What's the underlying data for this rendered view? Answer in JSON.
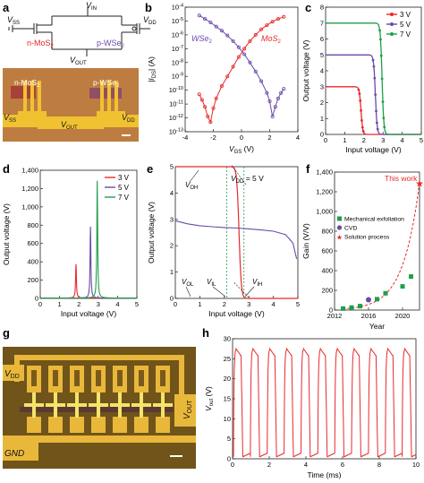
{
  "panels": {
    "a": "a",
    "b": "b",
    "c": "c",
    "d": "d",
    "e": "e",
    "f": "f",
    "g": "g",
    "h": "h"
  },
  "colors": {
    "red": "#e8292a",
    "purple": "#6a4aa8",
    "green": "#1f9e4a",
    "gold": "#e9b83b",
    "chip": "#7a5a1c"
  },
  "a": {
    "vin": "V",
    "vin_sub": "IN",
    "vss": "V",
    "vss_sub": "SS",
    "vdd": "V",
    "vdd_sub": "DD",
    "vout": "V",
    "vout_sub": "OUT",
    "nmos": "n-MoS",
    "nmos_sub": "2",
    "pwse": "p-WSe",
    "pwse_sub": "2",
    "photo_nmos": "n-MoS",
    "photo_nmos_sub": "2",
    "photo_pwse": "p-WSe",
    "photo_pwse_sub": "2",
    "photo_vss": "V",
    "photo_vss_sub": "SS",
    "photo_vdd": "V",
    "photo_vdd_sub": "DD",
    "photo_vout": "V",
    "photo_vout_sub": "OUT"
  },
  "g": {
    "vdd": "V",
    "vdd_sub": "DD",
    "vout": "V",
    "vout_sub": "OUT",
    "gnd": "GND"
  },
  "chart_data": [
    {
      "panel": "b",
      "type": "line",
      "title": "",
      "xlabel": "V",
      "xlabel_sub": "GS",
      "xlabel_unit": " (V)",
      "ylabel": "|I",
      "ylabel_sub": "DS",
      "ylabel_unit": "| (A)",
      "xlim": [
        -4,
        4
      ],
      "ylim_log10": [
        -13,
        -4
      ],
      "log_y": true,
      "xticks": [
        "-4",
        "-2",
        "0",
        "2",
        "4"
      ],
      "yticks": [
        "10",
        "10",
        "10",
        "10",
        "10",
        "10",
        "10",
        "10",
        "10",
        "10"
      ],
      "ytick_exps": [
        "-4",
        "-5",
        "-6",
        "-7",
        "-8",
        "-9",
        "-10",
        "-11",
        "-12",
        "-13"
      ],
      "labels": {
        "wse": "WSe",
        "wse_sub": "2",
        "mos": "MoS",
        "mos_sub": "2"
      },
      "series": [
        {
          "name": "WSe2",
          "color": "#6a4aa8",
          "x": [
            -3.0,
            -2.6,
            -2.2,
            -1.8,
            -1.4,
            -1.0,
            -0.6,
            -0.2,
            0.2,
            0.6,
            1.0,
            1.4,
            1.8,
            2.0,
            2.2,
            2.4,
            2.6,
            2.8,
            3.0
          ],
          "logy": [
            -4.6,
            -4.85,
            -5.1,
            -5.4,
            -5.7,
            -6.05,
            -6.45,
            -6.9,
            -7.4,
            -8.0,
            -8.65,
            -9.35,
            -10.2,
            -10.8,
            -11.9,
            -11.2,
            -10.6,
            -10.2,
            -9.9
          ]
        },
        {
          "name": "MoS2",
          "color": "#e8292a",
          "x": [
            -3.0,
            -2.8,
            -2.6,
            -2.4,
            -2.2,
            -2.0,
            -1.8,
            -1.4,
            -1.0,
            -0.6,
            -0.2,
            0.2,
            0.6,
            1.0,
            1.4,
            1.8,
            2.2,
            2.6,
            3.0
          ],
          "logy": [
            -10.3,
            -10.7,
            -11.2,
            -11.9,
            -12.3,
            -11.3,
            -10.6,
            -9.7,
            -9.0,
            -8.3,
            -7.6,
            -7.0,
            -6.45,
            -6.0,
            -5.6,
            -5.3,
            -5.05,
            -4.85,
            -4.7
          ]
        }
      ]
    },
    {
      "panel": "c",
      "type": "line",
      "title": "",
      "xlabel": "Input voltage (V)",
      "ylabel": "Output voltage (V)",
      "xlim": [
        0,
        5
      ],
      "ylim": [
        0,
        8
      ],
      "xticks": [
        "0",
        "1",
        "2",
        "3",
        "4",
        "5"
      ],
      "yticks": [
        "0",
        "1",
        "2",
        "3",
        "4",
        "5",
        "6",
        "7",
        "8"
      ],
      "legend": [
        "3 V",
        "5 V",
        "7 V"
      ],
      "legend_position": "top-right",
      "series": [
        {
          "name": "3 V",
          "color": "#e8292a",
          "vdd": 3,
          "vm": 1.85,
          "k": 22
        },
        {
          "name": "5 V",
          "color": "#6a4aa8",
          "vdd": 5,
          "vm": 2.6,
          "k": 22
        },
        {
          "name": "7 V",
          "color": "#1f9e4a",
          "vdd": 7,
          "vm": 2.95,
          "k": 22
        }
      ]
    },
    {
      "panel": "d",
      "type": "line",
      "title": "",
      "xlabel": "Input voltage (V)",
      "ylabel": "Output voltage (V)",
      "xlim": [
        0,
        5
      ],
      "ylim": [
        0,
        1400
      ],
      "xticks": [
        "0",
        "1",
        "2",
        "3",
        "4",
        "5"
      ],
      "yticks": [
        "0",
        "200",
        "400",
        "600",
        "800",
        "1,000",
        "1,200",
        "1,400"
      ],
      "legend": [
        "3 V",
        "5 V",
        "7 V"
      ],
      "legend_position": "top-right",
      "series": [
        {
          "name": "3 V",
          "color": "#e8292a",
          "peak_x": 1.85,
          "peak_y": 370
        },
        {
          "name": "5 V",
          "color": "#6a4aa8",
          "peak_x": 2.6,
          "peak_y": 780
        },
        {
          "name": "7 V",
          "color": "#1f9e4a",
          "peak_x": 2.95,
          "peak_y": 1280
        }
      ]
    },
    {
      "panel": "e",
      "type": "line",
      "title": "",
      "xlabel": "Input voltage (V)",
      "ylabel": "Output voltage (V)",
      "xlim": [
        0,
        5
      ],
      "ylim": [
        0,
        5
      ],
      "xticks": [
        "0",
        "1",
        "2",
        "3",
        "4",
        "5"
      ],
      "yticks": [
        "0",
        "1",
        "2",
        "3",
        "4",
        "5"
      ],
      "annotation": "V",
      "annotation_sub": "DD",
      "annotation_tail": " = 5 V",
      "labels": {
        "voh": "V",
        "voh_sub": "OH",
        "vol": "V",
        "vol_sub": "OL",
        "vil": "V",
        "vil_sub": "IL",
        "vih": "V",
        "vih_sub": "IH"
      },
      "series": [
        {
          "name": "VTC",
          "color": "#e8292a",
          "vdd": 5,
          "vm": 2.6,
          "k": 22
        },
        {
          "name": "mirrored",
          "color": "#6a4aa8",
          "points_x": [
            0.0,
            0.5,
            1.0,
            1.5,
            2.0,
            2.5,
            3.0,
            3.5,
            4.0,
            4.5,
            4.8,
            4.95
          ],
          "points_y": [
            2.95,
            2.83,
            2.76,
            2.72,
            2.69,
            2.67,
            2.64,
            2.6,
            2.55,
            2.42,
            2.1,
            1.5
          ]
        }
      ],
      "vlines": [
        2.1,
        2.8
      ]
    },
    {
      "panel": "f",
      "type": "scatter",
      "title": "",
      "xlabel": "Year",
      "ylabel": "Gain (V/V)",
      "xlim": [
        2012,
        2022
      ],
      "ylim": [
        0,
        1400
      ],
      "xticks": [
        "2012",
        "2016",
        "2020"
      ],
      "yticks": [
        "0",
        "200",
        "400",
        "600",
        "800",
        "1,000",
        "1,200",
        "1,400"
      ],
      "annotation": "This work",
      "legend": [
        "Mechanical exfoliation",
        "CVD",
        "Solution process"
      ],
      "legend_position": "center-left",
      "series": [
        {
          "name": "Mechanical exfoliation",
          "color": "#1f9e4a",
          "x": [
            2013,
            2014,
            2015,
            2017,
            2018,
            2020,
            2021
          ],
          "y": [
            15,
            25,
            40,
            110,
            170,
            240,
            340
          ]
        },
        {
          "name": "CVD",
          "color": "#6a4aa8",
          "x": [
            2016
          ],
          "y": [
            105
          ]
        },
        {
          "name": "Solution process",
          "color": "#e8292a",
          "x": [
            2022
          ],
          "y": [
            1280
          ]
        }
      ]
    },
    {
      "panel": "h",
      "type": "line",
      "title": "",
      "xlabel": "Time (ms)",
      "ylabel": "V",
      "ylabel_sub": "out",
      "ylabel_unit": " (V)",
      "xlim": [
        0,
        10
      ],
      "ylim": [
        0,
        30
      ],
      "xticks": [
        "0",
        "2",
        "4",
        "6",
        "8",
        "10"
      ],
      "yticks": [
        "0",
        "5",
        "10",
        "15",
        "20",
        "25",
        "30"
      ],
      "series": [
        {
          "name": "oscillation",
          "color": "#e8292a",
          "period_ms": 0.92,
          "phase_ms": 0.05,
          "vmax": 27.5,
          "vmin": 0.5
        }
      ]
    }
  ]
}
